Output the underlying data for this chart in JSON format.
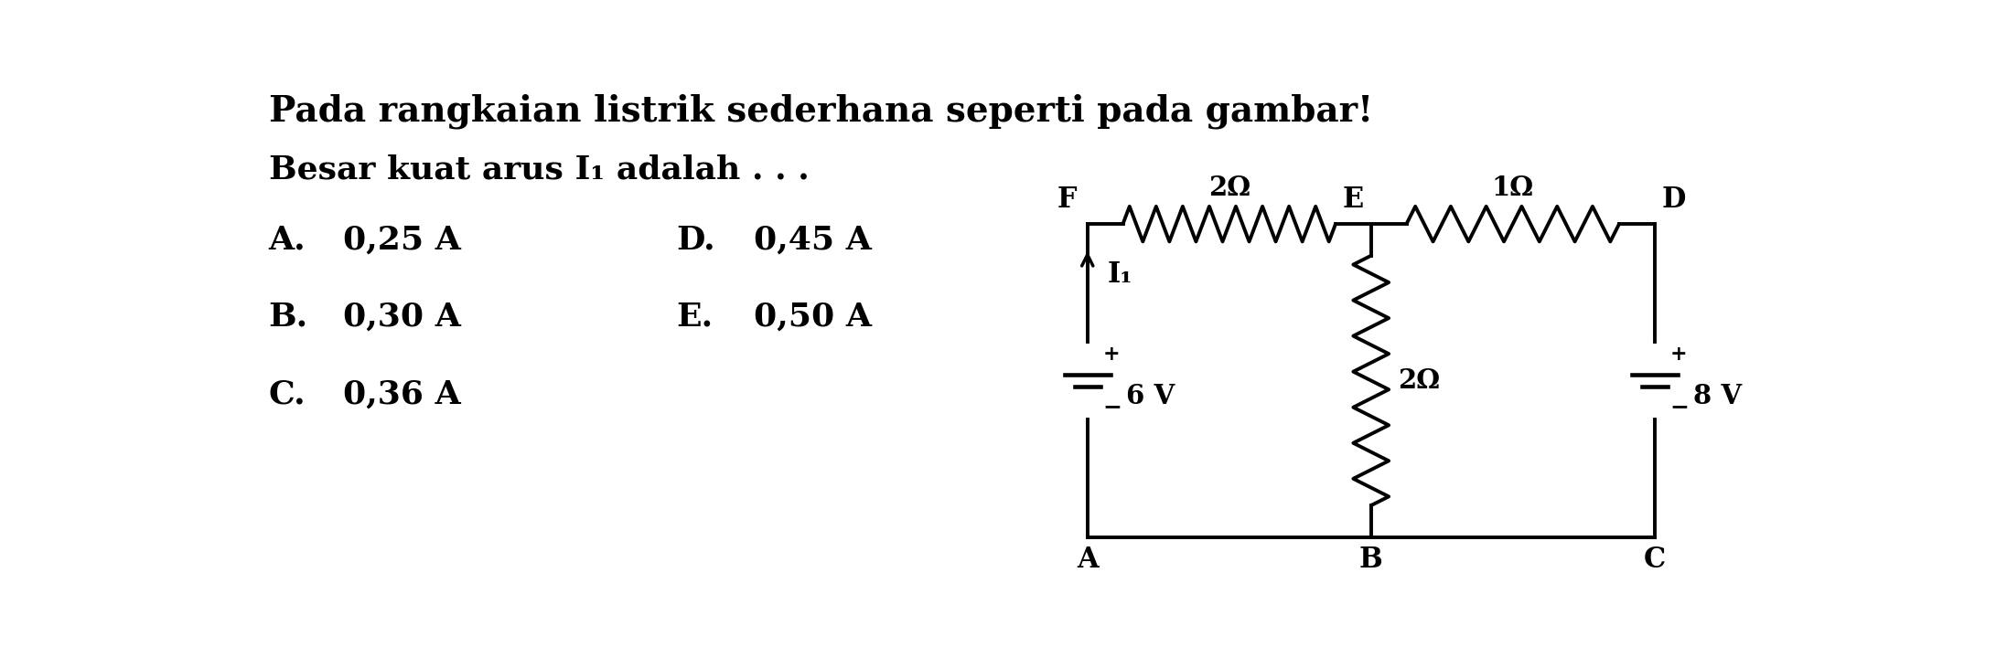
{
  "title": "Pada rangkaian listrik sederhana seperti pada gambar!",
  "subtitle": "Besar kuat arus I₁ adalah . . .",
  "options": [
    [
      "A.",
      "0,25 A",
      "D.",
      "0,45 A"
    ],
    [
      "B.",
      "0,30 A",
      "E.",
      "0,50 A"
    ],
    [
      "C.",
      "0,36 A",
      "",
      ""
    ]
  ],
  "circuit": {
    "R_FE": "2Ω",
    "R_ED": "1Ω",
    "R_BE": "2Ω",
    "V_AF": "6 V",
    "V_CD": "8 V",
    "I1_label": "I₁"
  },
  "bg_color": "#ffffff",
  "line_color": "#000000",
  "text_color": "#000000",
  "font_size_title": 28,
  "font_size_subtitle": 26,
  "font_size_options": 26,
  "font_size_circuit": 20
}
